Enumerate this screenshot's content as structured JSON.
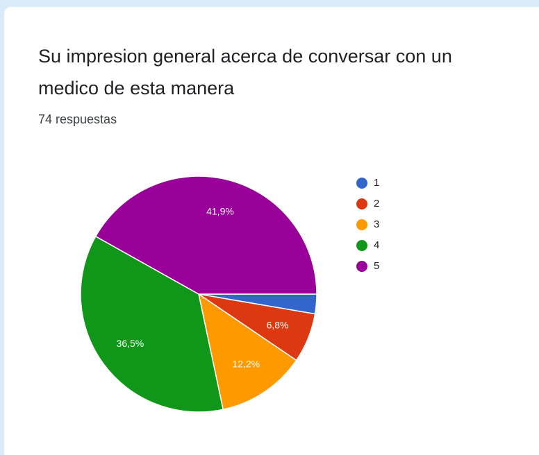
{
  "chart_data": {
    "type": "pie",
    "title": "Su impresion general acerca de conversar con un medico de esta manera",
    "subtitle": "74 respuestas",
    "categories": [
      "1",
      "2",
      "3",
      "4",
      "5"
    ],
    "values": [
      2.7,
      6.8,
      12.2,
      36.5,
      41.9
    ],
    "value_labels": [
      null,
      "6,8%",
      "12,2%",
      "36,5%",
      "41,9%"
    ],
    "colors": [
      "#3366cc",
      "#dc3912",
      "#ff9900",
      "#109618",
      "#990099"
    ],
    "legend": "right"
  }
}
